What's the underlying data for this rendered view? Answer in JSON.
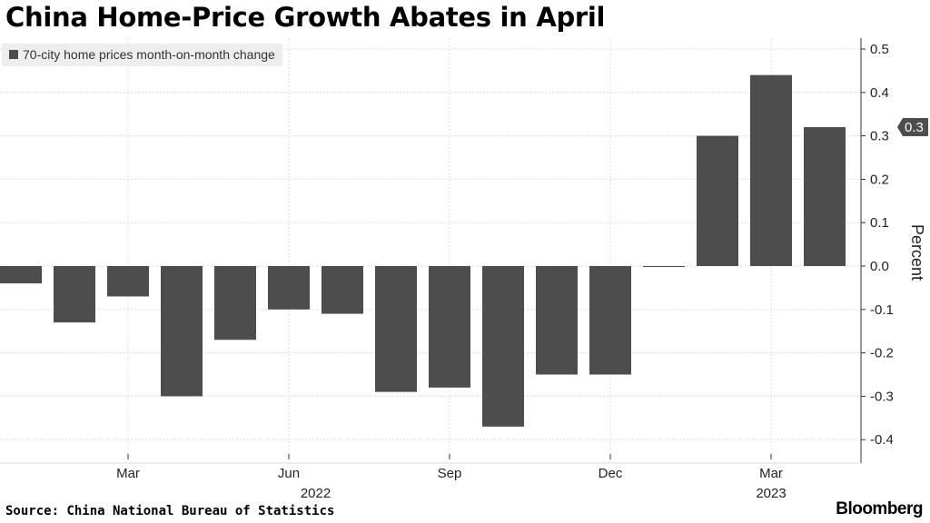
{
  "title": "China Home-Price Growth Abates in April",
  "source": "Source: China National Bureau of Statistics",
  "brand": "Bloomberg",
  "chart_data": {
    "type": "bar",
    "title": "China Home-Price Growth Abates in April",
    "series": [
      {
        "name": "70-city home prices month-on-month change",
        "color": "#4d4d4d",
        "values": [
          -0.04,
          -0.13,
          -0.07,
          -0.3,
          -0.17,
          -0.1,
          -0.11,
          -0.29,
          -0.28,
          -0.37,
          -0.25,
          -0.25,
          0.0,
          0.3,
          0.44,
          0.32
        ]
      }
    ],
    "categories": [
      "2022-01",
      "2022-02",
      "2022-03",
      "2022-04",
      "2022-05",
      "2022-06",
      "2022-07",
      "2022-08",
      "2022-09",
      "2022-10",
      "2022-11",
      "2022-12",
      "2023-01",
      "2023-02",
      "2023-03",
      "2023-04"
    ],
    "x_ticks": [
      {
        "label": "Mar",
        "index": 2
      },
      {
        "label": "Jun",
        "index": 5
      },
      {
        "label": "Sep",
        "index": 8
      },
      {
        "label": "Dec",
        "index": 11
      },
      {
        "label": "Mar",
        "index": 14
      }
    ],
    "year_labels": [
      {
        "label": "2022",
        "index": 5.5
      },
      {
        "label": "2023",
        "index": 14
      }
    ],
    "ylabel": "Percent",
    "ylim": [
      -0.45,
      0.5
    ],
    "y_ticks": [
      "0.5",
      "0.4",
      "0.3",
      "0.2",
      "0.1",
      "0.0",
      "-0.1",
      "-0.2",
      "-0.3",
      "-0.4"
    ],
    "last_value_label": "0.3",
    "grid": true,
    "axis_position": "right",
    "legend_position": "top-left"
  }
}
